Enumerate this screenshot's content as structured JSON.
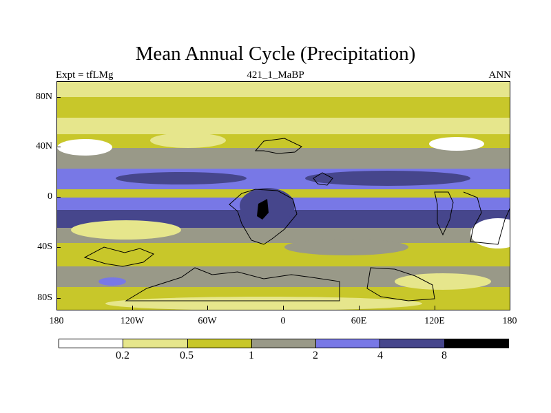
{
  "figure": {
    "title": "Mean Annual Cycle (Precipitation)",
    "left_label": "Expt = tfLMg",
    "center_label": "421_1_MaBP",
    "right_label": "ANN"
  },
  "axes": {
    "y_ticks": [
      "80N",
      "40N",
      "0",
      "40S",
      "80S"
    ],
    "x_ticks": [
      "180",
      "120W",
      "60W",
      "0",
      "60E",
      "120E",
      "180"
    ]
  },
  "colorbar": {
    "levels": [
      "0.2",
      "0.5",
      "1",
      "2",
      "4",
      "8"
    ],
    "colors": [
      "#ffffff",
      "#e6e68c",
      "#c8c72a",
      "#999988",
      "#7878e6",
      "#46468c",
      "#000000"
    ]
  },
  "chart_data": {
    "type": "heatmap",
    "title": "Mean Annual Cycle (Precipitation)",
    "subtitle": "421_1_MaBP",
    "experiment": "Expt = tfLMg",
    "season": "ANN",
    "xlim": [
      -180,
      180
    ],
    "ylim": [
      -90,
      90
    ],
    "contour_levels": [
      0.2,
      0.5,
      1,
      2,
      4,
      8
    ],
    "zonal_bands": [
      {
        "lat_range": [
          77,
          90
        ],
        "level": "0.2-0.5"
      },
      {
        "lat_range": [
          60,
          77
        ],
        "level": "0.5-1"
      },
      {
        "lat_range": [
          45,
          60
        ],
        "level": "0.2-0.5"
      },
      {
        "lat_range": [
          35,
          45
        ],
        "level": "0.5-1"
      },
      {
        "lat_range": [
          20,
          35
        ],
        "level": "1-2"
      },
      {
        "lat_range": [
          5,
          20
        ],
        "level": "2-4"
      },
      {
        "lat_range": [
          0,
          5
        ],
        "level": "0.5-1"
      },
      {
        "lat_range": [
          -10,
          0
        ],
        "level": "2-4"
      },
      {
        "lat_range": [
          -25,
          -10
        ],
        "level": "4-8"
      },
      {
        "lat_range": [
          -35,
          -25
        ],
        "level": "1-2"
      },
      {
        "lat_range": [
          -55,
          -35
        ],
        "level": "0.5-1"
      },
      {
        "lat_range": [
          -70,
          -55
        ],
        "level": "1-2"
      },
      {
        "lat_range": [
          -90,
          -70
        ],
        "level": "0.5-1"
      }
    ]
  }
}
